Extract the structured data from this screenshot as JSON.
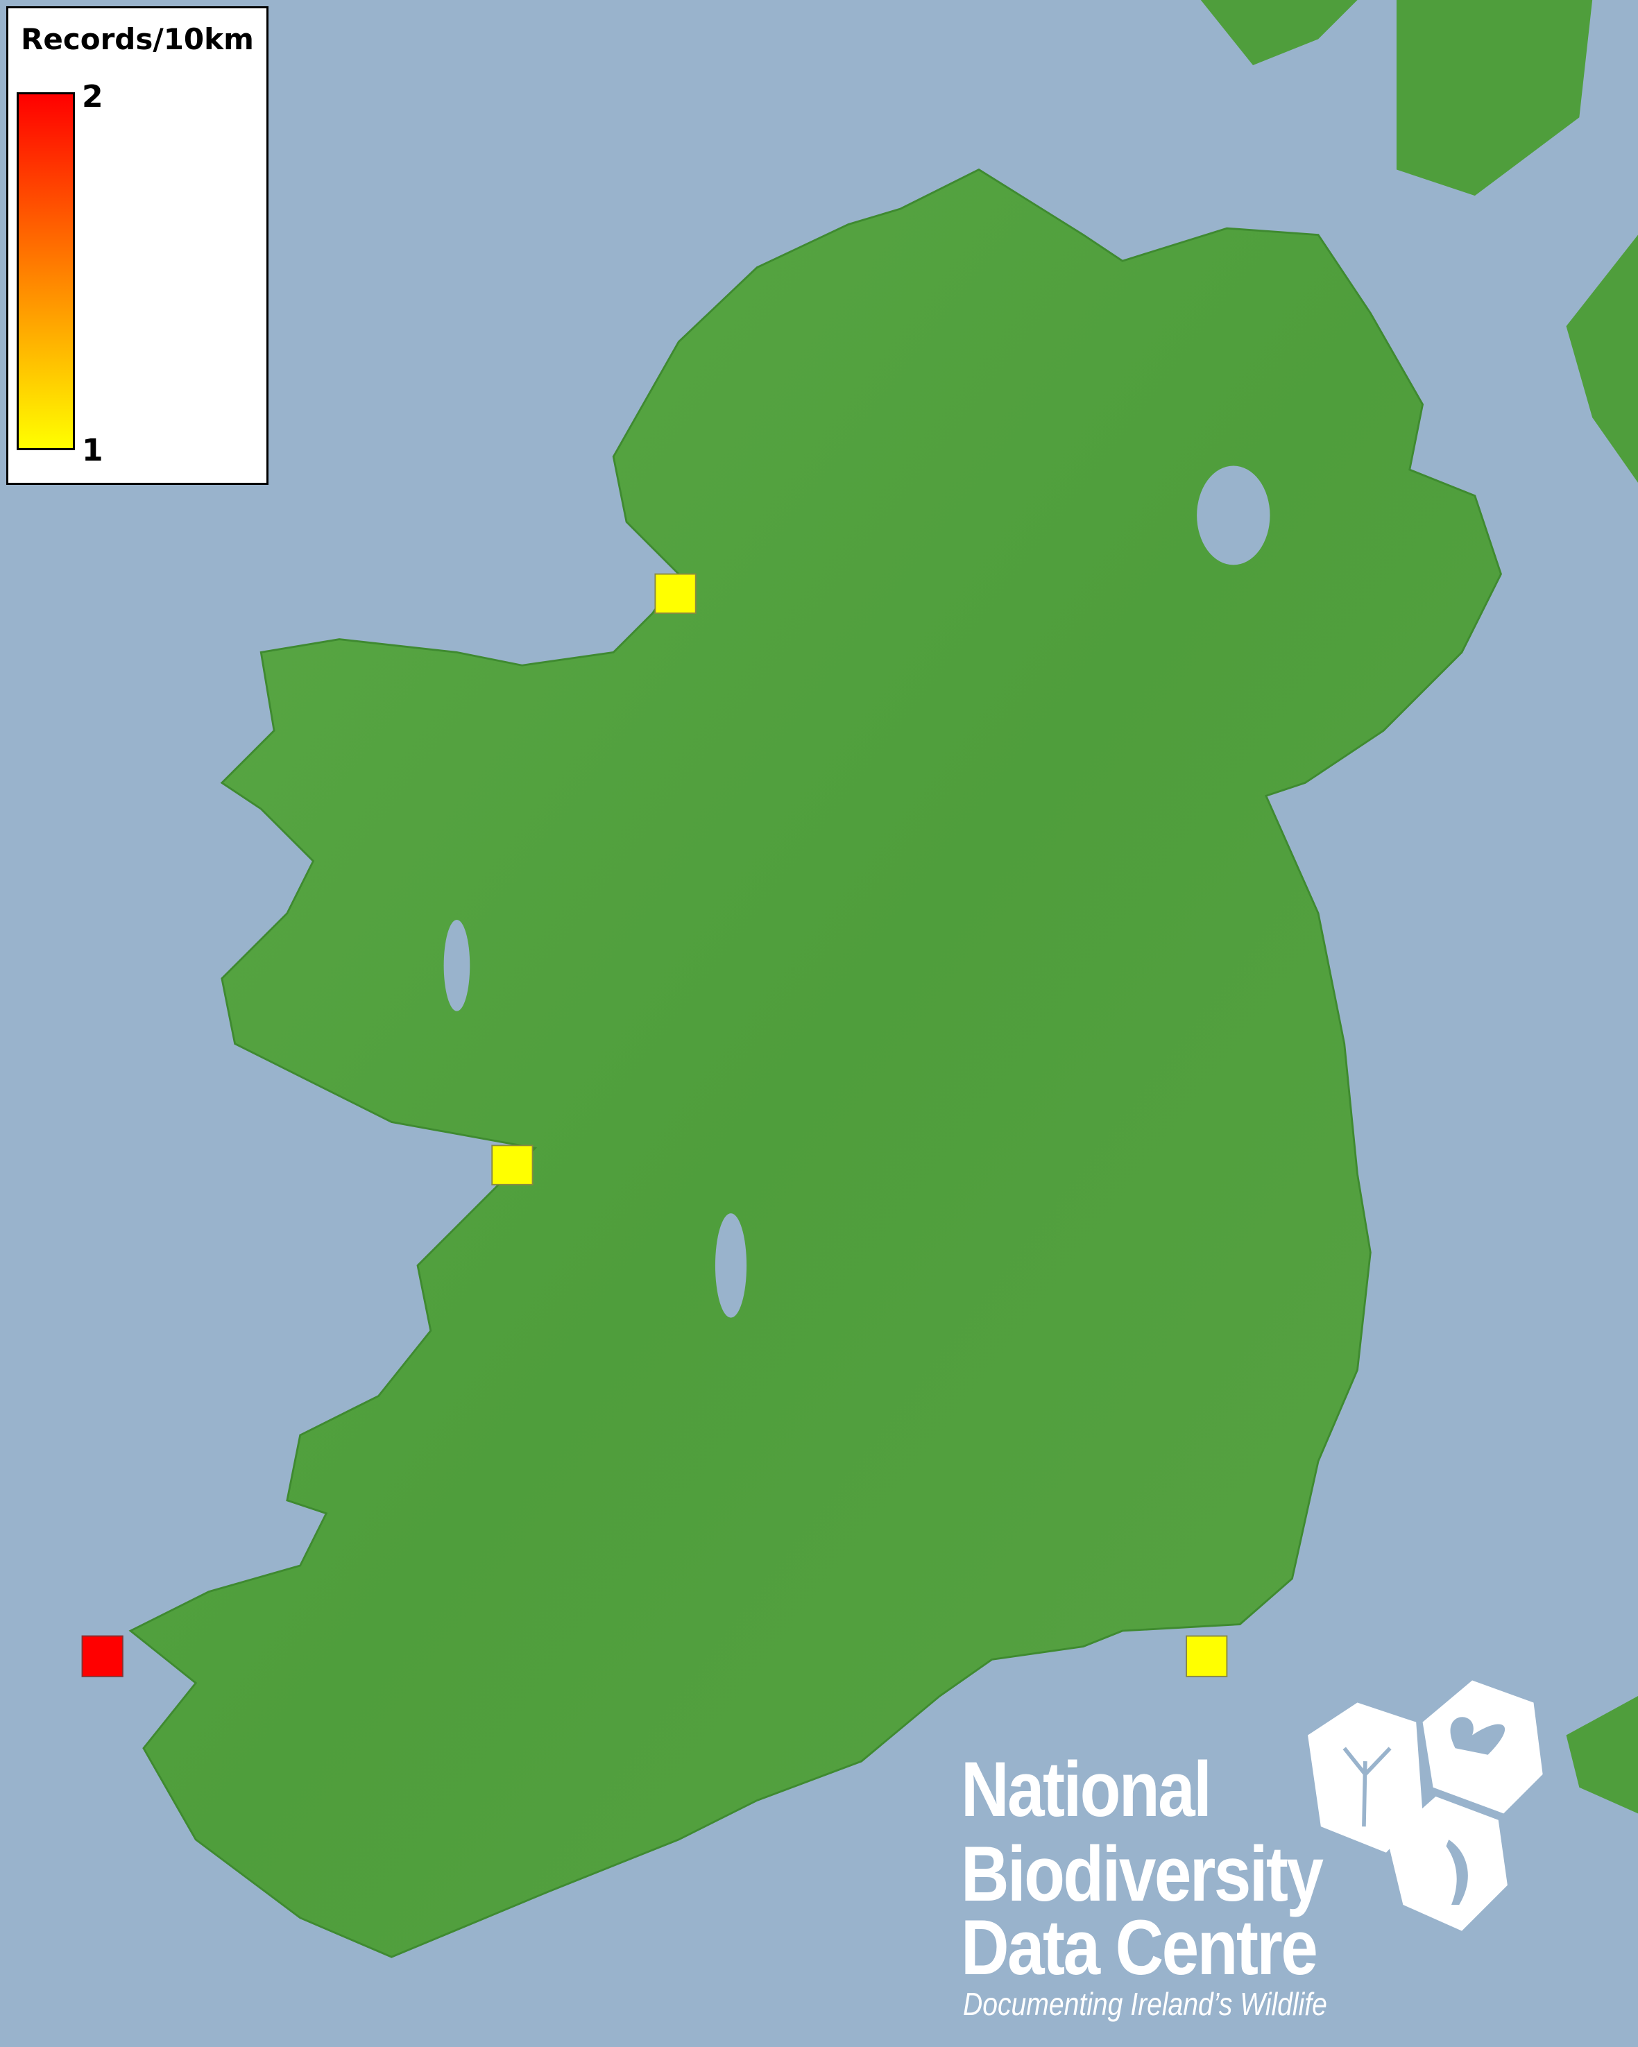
{
  "legend": {
    "title": "Records/10km",
    "max_label": "2",
    "min_label": "1",
    "color_max": "#ff0000",
    "color_mid": "#ff8000",
    "color_min": "#ffff00"
  },
  "map": {
    "region": "Ireland",
    "sea_color": "#99b3cc",
    "land_color": "#4f9e3c",
    "records": [
      {
        "location": "Donegal coast",
        "count": 1,
        "color": "#ffff00"
      },
      {
        "location": "Galway Bay",
        "count": 1,
        "color": "#ffff00"
      },
      {
        "location": "Kerry coast",
        "count": 2,
        "color": "#ff0000"
      },
      {
        "location": "Wexford coast",
        "count": 1,
        "color": "#ffff00"
      }
    ]
  },
  "logo": {
    "line1": "National",
    "line2": "Biodiversity",
    "line3": "Data Centre",
    "tagline": "Documenting Ireland’s Wildlife",
    "icons": [
      "tree-icon",
      "butterfly-icon",
      "seahorse-icon"
    ]
  }
}
